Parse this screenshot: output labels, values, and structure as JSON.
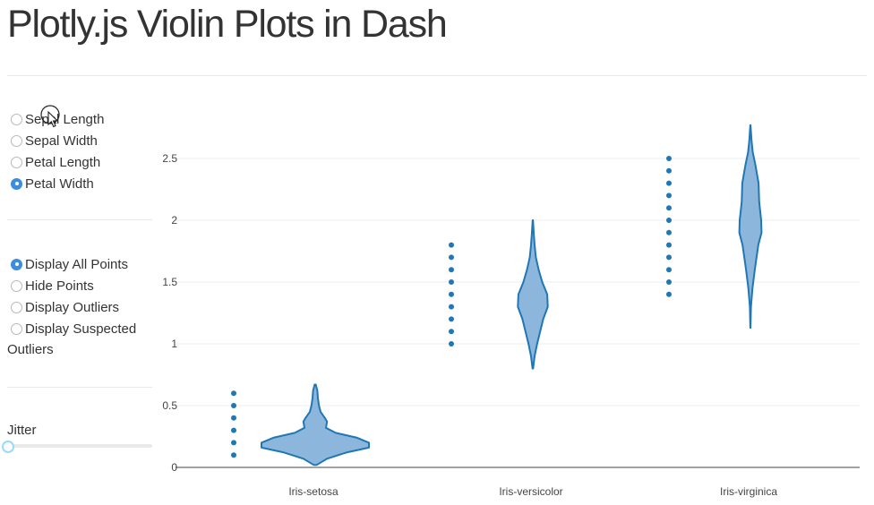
{
  "page": {
    "title": "Plotly.js Violin Plots in Dash"
  },
  "controls": {
    "measure_options": [
      {
        "label": "Sepal Length",
        "checked": false
      },
      {
        "label": "Sepal Width",
        "checked": false
      },
      {
        "label": "Petal Length",
        "checked": false
      },
      {
        "label": "Petal Width",
        "checked": true
      }
    ],
    "points_options": [
      {
        "label": "Display All Points",
        "checked": true
      },
      {
        "label": "Hide Points",
        "checked": false
      },
      {
        "label": "Display Outliers",
        "checked": false
      },
      {
        "label": "Display Suspected",
        "checked": false
      }
    ],
    "points_wrap_text": "Outliers",
    "jitter_label": "Jitter",
    "jitter_value": 0
  },
  "colors": {
    "violin_line": "#1f77b4",
    "violin_fill": "#8db6dc",
    "accent": "#3c8dde"
  },
  "chart_data": {
    "type": "violin",
    "categories": [
      "Iris-setosa",
      "Iris-versicolor",
      "Iris-virginica"
    ],
    "points": [
      [
        0.1,
        0.2,
        0.3,
        0.4,
        0.5,
        0.6
      ],
      [
        1.0,
        1.1,
        1.2,
        1.3,
        1.4,
        1.5,
        1.6,
        1.7,
        1.8
      ],
      [
        1.4,
        1.5,
        1.6,
        1.7,
        1.8,
        1.9,
        2.0,
        2.1,
        2.2,
        2.3,
        2.4,
        2.5
      ]
    ],
    "violins": [
      {
        "min": 0.02,
        "max": 0.67,
        "profile": [
          [
            0.02,
            0.03
          ],
          [
            0.07,
            0.22
          ],
          [
            0.12,
            0.58
          ],
          [
            0.16,
            1.0
          ],
          [
            0.2,
            1.0
          ],
          [
            0.24,
            0.78
          ],
          [
            0.28,
            0.38
          ],
          [
            0.32,
            0.2
          ],
          [
            0.37,
            0.22
          ],
          [
            0.4,
            0.18
          ],
          [
            0.45,
            0.1
          ],
          [
            0.5,
            0.07
          ],
          [
            0.56,
            0.05
          ],
          [
            0.62,
            0.04
          ],
          [
            0.67,
            0.01
          ]
        ]
      },
      {
        "min": 0.8,
        "max": 2.0,
        "profile": [
          [
            0.8,
            0.02
          ],
          [
            0.9,
            0.12
          ],
          [
            1.0,
            0.28
          ],
          [
            1.1,
            0.48
          ],
          [
            1.2,
            0.68
          ],
          [
            1.3,
            0.98
          ],
          [
            1.4,
            0.95
          ],
          [
            1.5,
            0.62
          ],
          [
            1.6,
            0.38
          ],
          [
            1.7,
            0.2
          ],
          [
            1.8,
            0.12
          ],
          [
            1.9,
            0.06
          ],
          [
            2.0,
            0.01
          ]
        ]
      },
      {
        "min": 1.13,
        "max": 2.77,
        "profile": [
          [
            1.13,
            0.01
          ],
          [
            1.3,
            0.05
          ],
          [
            1.45,
            0.18
          ],
          [
            1.6,
            0.38
          ],
          [
            1.8,
            0.68
          ],
          [
            1.9,
            0.95
          ],
          [
            2.0,
            0.92
          ],
          [
            2.15,
            0.75
          ],
          [
            2.3,
            0.7
          ],
          [
            2.45,
            0.42
          ],
          [
            2.55,
            0.2
          ],
          [
            2.65,
            0.09
          ],
          [
            2.77,
            0.01
          ]
        ]
      }
    ],
    "yticks": [
      0,
      0.5,
      1,
      1.5,
      2,
      2.5
    ],
    "ytick_labels": [
      "0",
      "0.5",
      "1",
      "1.5",
      "2",
      "2.5"
    ],
    "ylim": [
      0,
      2.78
    ],
    "grid": true,
    "legend": false
  }
}
